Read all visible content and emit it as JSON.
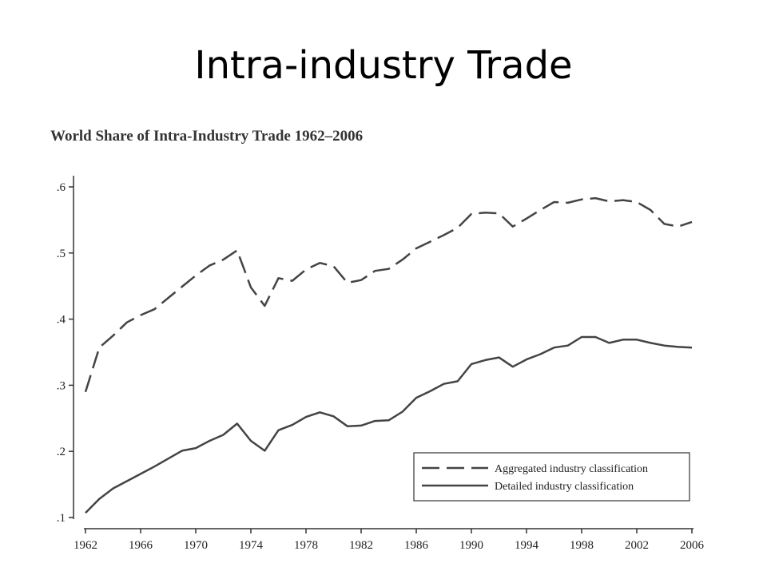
{
  "slide": {
    "title": "Intra-industry Trade"
  },
  "chart_data": {
    "type": "line",
    "title": "World Share of Intra-Industry Trade 1962–2006",
    "xlabel": "",
    "ylabel": "",
    "xlim": [
      1962,
      2006
    ],
    "ylim": [
      0.1,
      0.6
    ],
    "x_ticks": [
      1962,
      1966,
      1970,
      1974,
      1978,
      1982,
      1986,
      1990,
      1994,
      1998,
      2002,
      2006
    ],
    "x_tick_labels": [
      "1962",
      "1966",
      "1970",
      "1974",
      "1978",
      "1982",
      "1986",
      "1990",
      "1994",
      "1998",
      "2002",
      "2006"
    ],
    "y_ticks": [
      0.1,
      0.2,
      0.3,
      0.4,
      0.5,
      0.6
    ],
    "y_tick_labels": [
      ".1",
      ".2",
      ".3",
      ".4",
      ".5",
      ".6"
    ],
    "grid": false,
    "legend_position": "bottom-right",
    "x": [
      1962,
      1963,
      1964,
      1965,
      1966,
      1967,
      1968,
      1969,
      1970,
      1971,
      1972,
      1973,
      1974,
      1975,
      1976,
      1977,
      1978,
      1979,
      1980,
      1981,
      1982,
      1983,
      1984,
      1985,
      1986,
      1987,
      1988,
      1989,
      1990,
      1991,
      1992,
      1993,
      1994,
      1995,
      1996,
      1997,
      1998,
      1999,
      2000,
      2001,
      2002,
      2003,
      2004,
      2005,
      2006
    ],
    "series": [
      {
        "name": "Aggregated industry classification",
        "style": "dashed",
        "color": "#444444",
        "values": [
          0.29,
          0.357,
          0.375,
          0.395,
          0.406,
          0.415,
          0.432,
          0.449,
          0.466,
          0.481,
          0.49,
          0.504,
          0.448,
          0.42,
          0.462,
          0.458,
          0.475,
          0.485,
          0.48,
          0.455,
          0.459,
          0.473,
          0.476,
          0.49,
          0.507,
          0.517,
          0.527,
          0.538,
          0.559,
          0.561,
          0.56,
          0.54,
          0.552,
          0.565,
          0.577,
          0.576,
          0.581,
          0.583,
          0.578,
          0.58,
          0.577,
          0.565,
          0.544,
          0.54,
          0.547
        ]
      },
      {
        "name": "Detailed industry classification",
        "style": "solid",
        "color": "#444444",
        "values": [
          0.107,
          0.128,
          0.144,
          0.155,
          0.166,
          0.177,
          0.189,
          0.201,
          0.205,
          0.216,
          0.225,
          0.242,
          0.216,
          0.201,
          0.232,
          0.24,
          0.252,
          0.259,
          0.253,
          0.238,
          0.239,
          0.246,
          0.247,
          0.26,
          0.281,
          0.291,
          0.302,
          0.306,
          0.332,
          0.338,
          0.342,
          0.328,
          0.339,
          0.347,
          0.357,
          0.36,
          0.373,
          0.373,
          0.364,
          0.369,
          0.369,
          0.364,
          0.36,
          0.358,
          0.357
        ]
      }
    ]
  }
}
